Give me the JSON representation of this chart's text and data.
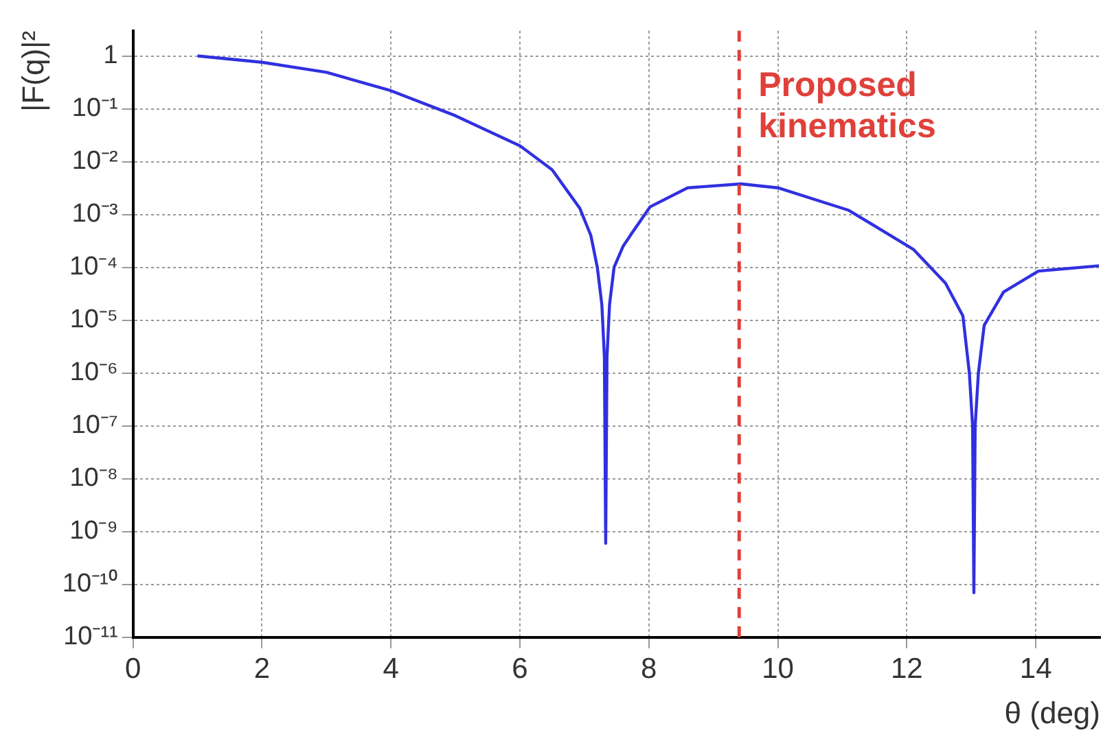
{
  "chart_data": {
    "type": "line",
    "xlabel": "θ (deg)",
    "ylabel": "|F(q)|²",
    "xlim": [
      0,
      15
    ],
    "xticks": [
      0,
      2,
      4,
      6,
      8,
      10,
      12,
      14
    ],
    "ylim": [
      1e-11,
      3
    ],
    "yticks": [
      {
        "value": 1e-11,
        "label": "10⁻¹¹"
      },
      {
        "value": 1e-10,
        "label": "10⁻¹⁰"
      },
      {
        "value": 1e-09,
        "label": "10⁻⁹"
      },
      {
        "value": 1e-08,
        "label": "10⁻⁸"
      },
      {
        "value": 1e-07,
        "label": "10⁻⁷"
      },
      {
        "value": 1e-06,
        "label": "10⁻⁶"
      },
      {
        "value": 1e-05,
        "label": "10⁻⁵"
      },
      {
        "value": 0.0001,
        "label": "10⁻⁴"
      },
      {
        "value": 0.001,
        "label": "10⁻³"
      },
      {
        "value": 0.01,
        "label": "10⁻²"
      },
      {
        "value": 0.1,
        "label": "10⁻¹"
      },
      1
    ],
    "log": "y",
    "grid": true,
    "legend": false,
    "marker": "none",
    "line_style": "solid",
    "series": [
      {
        "color": "#3030e0",
        "x": [
          1,
          2,
          3,
          4,
          5,
          6,
          6.5,
          6.93,
          7.1,
          7.2,
          7.27,
          7.31,
          7.33,
          7.35,
          7.39,
          7.46,
          7.6,
          7.74,
          8.02,
          8.6,
          9.43,
          10,
          11.1,
          12.1,
          12.6,
          12.87,
          12.97,
          13.02,
          13.04,
          13.06,
          13.11,
          13.2,
          13.5,
          14.04,
          14.98
        ],
        "values": [
          1,
          0.76,
          0.49,
          0.22,
          0.074,
          0.02,
          0.007,
          0.0013,
          0.0004,
          0.0001,
          2e-05,
          2e-06,
          6e-10,
          2e-06,
          2e-05,
          0.0001,
          0.00025,
          0.00045,
          0.0014,
          0.0032,
          0.0038,
          0.0032,
          0.0012,
          0.00022,
          5e-05,
          1.2e-05,
          1e-06,
          1e-07,
          7e-11,
          1e-07,
          1e-06,
          8e-06,
          3.4e-05,
          8.5e-05,
          0.000107
        ]
      }
    ],
    "ref_lines": [
      {
        "axis": "x",
        "value": 9.4,
        "label": "Proposed kinematics",
        "color": "#e0403a",
        "line_style": "dashed"
      }
    ]
  }
}
